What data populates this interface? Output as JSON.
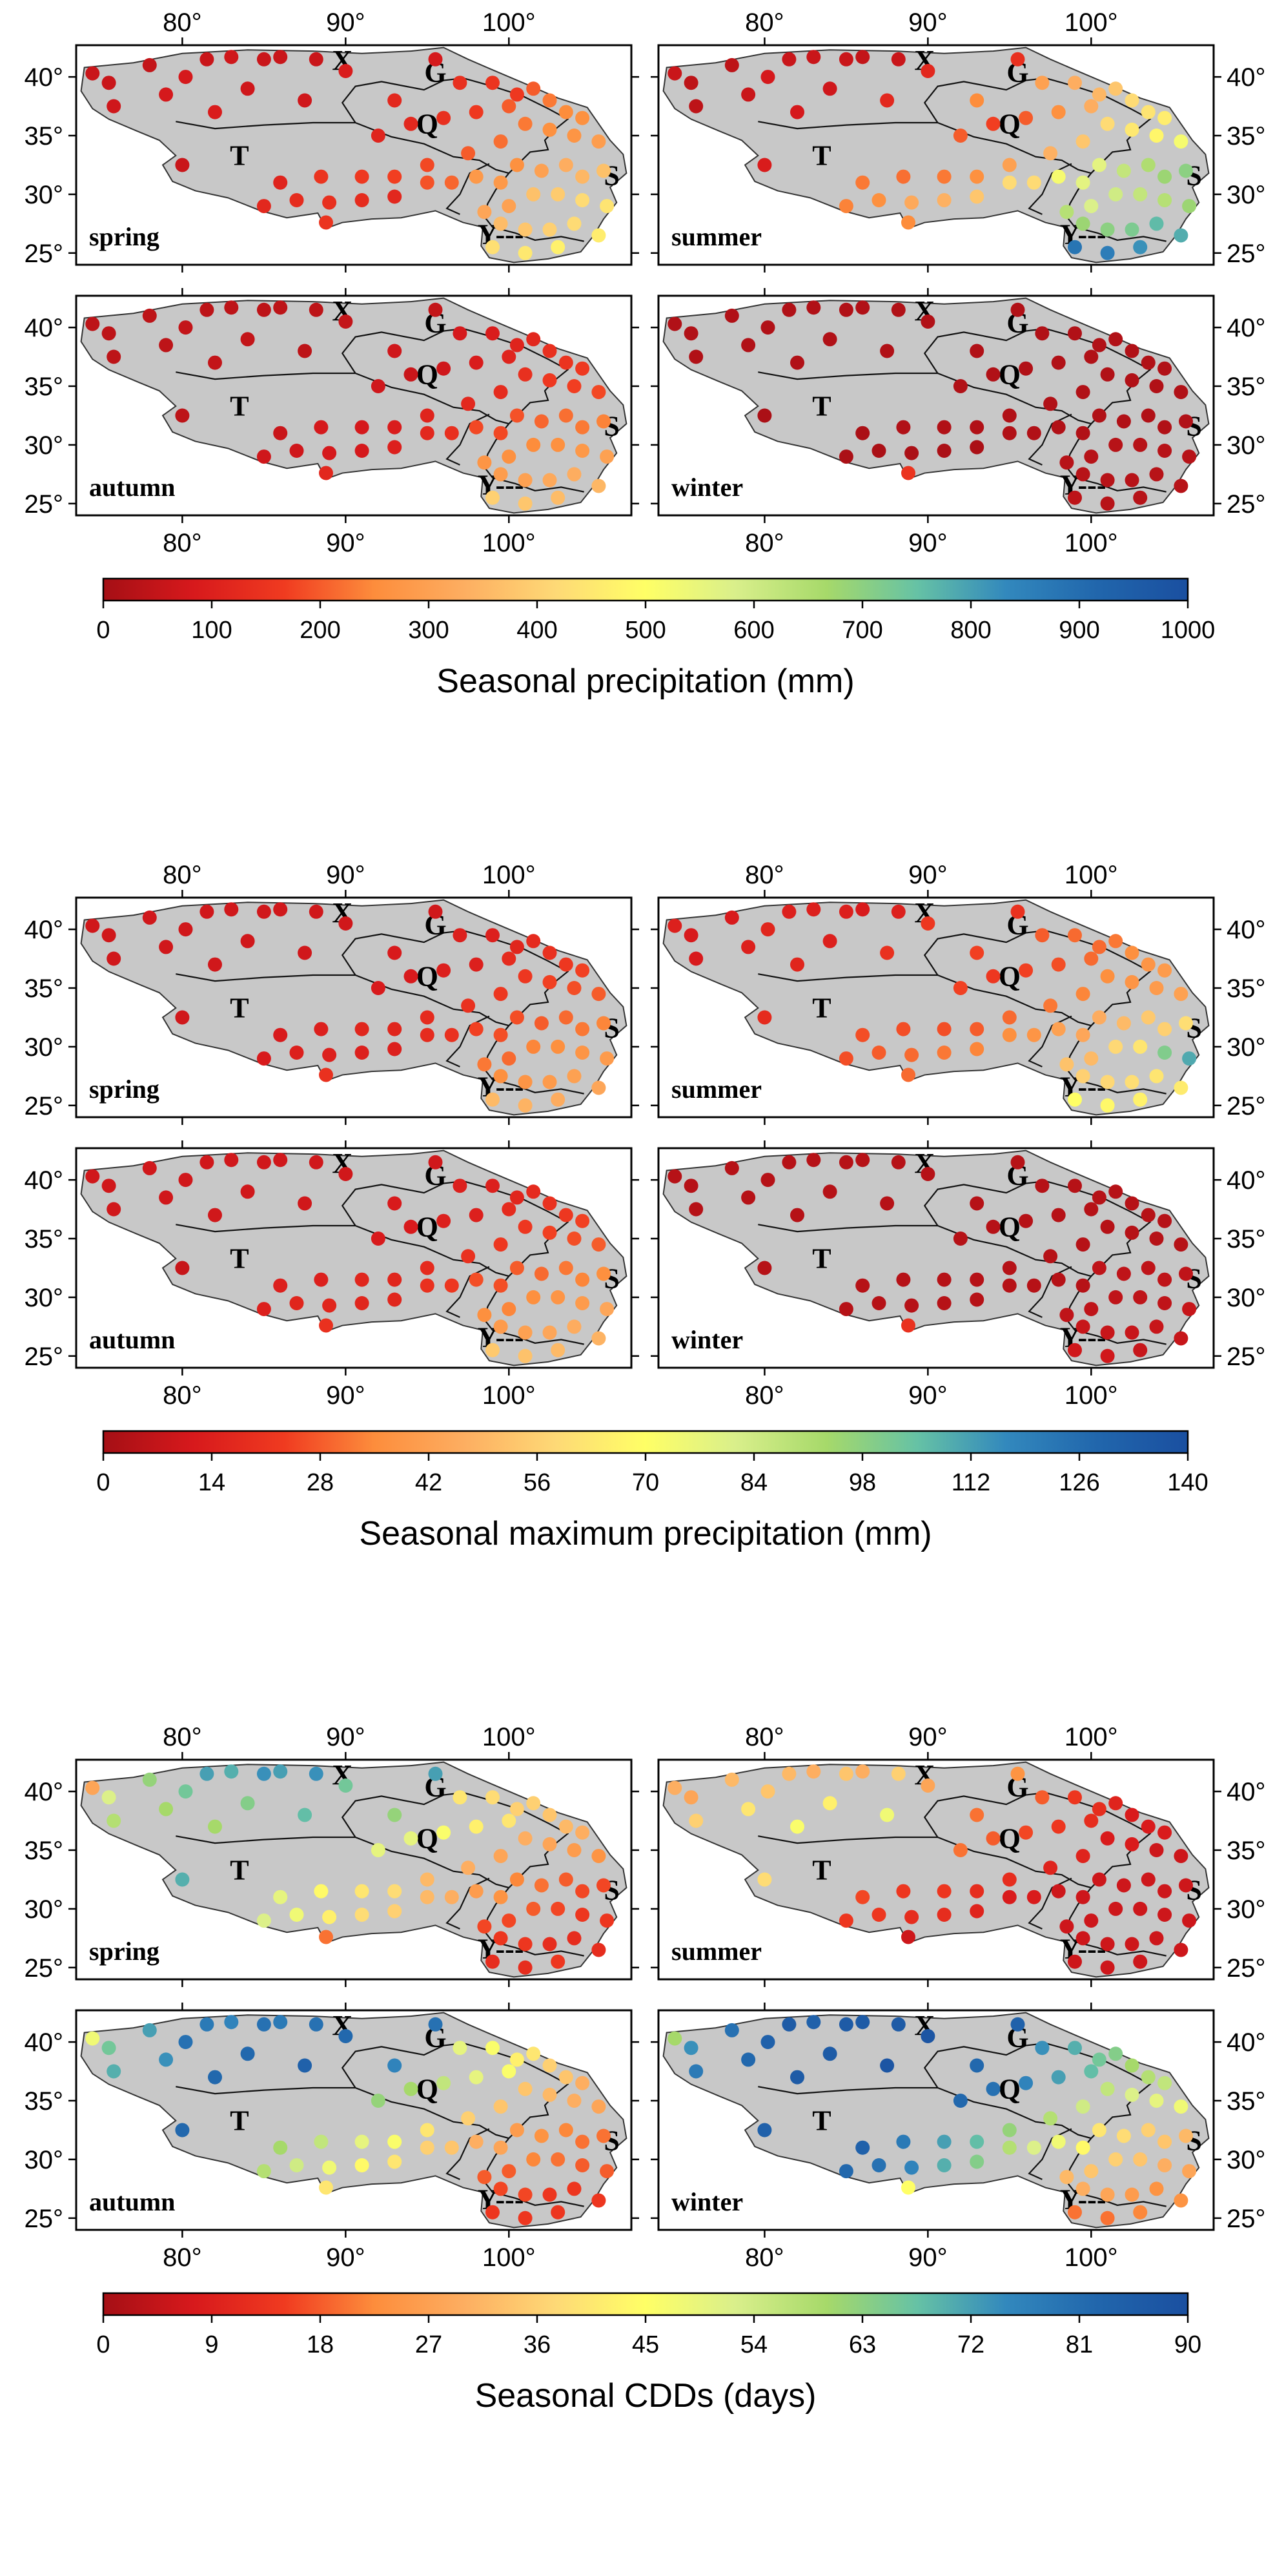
{
  "figure_sections": [
    {
      "id": "precip",
      "title": "Seasonal precipitation (mm)",
      "colorbar": {
        "min": 0,
        "max": 1000,
        "ticks": [
          "0",
          "100",
          "200",
          "300",
          "400",
          "500",
          "600",
          "700",
          "800",
          "900",
          "1000"
        ]
      },
      "panels": [
        {
          "season": "spring",
          "regions": [
            "X",
            "G",
            "Q",
            "T",
            "S",
            "Y---"
          ]
        },
        {
          "season": "summer",
          "regions": [
            "X",
            "G",
            "Q",
            "T",
            "S",
            "Y---"
          ]
        },
        {
          "season": "autumn",
          "regions": [
            "X",
            "G",
            "Q",
            "T",
            "S",
            "Y---"
          ]
        },
        {
          "season": "winter",
          "regions": [
            "X",
            "G",
            "Q",
            "T",
            "S",
            "Y---"
          ]
        }
      ]
    },
    {
      "id": "maxprecip",
      "title": "Seasonal maximum precipitation (mm)",
      "colorbar": {
        "min": 0,
        "max": 140,
        "ticks": [
          "0",
          "14",
          "28",
          "42",
          "56",
          "70",
          "84",
          "98",
          "112",
          "126",
          "140"
        ]
      },
      "panels": [
        {
          "season": "spring",
          "regions": [
            "X",
            "G",
            "Q",
            "T",
            "S",
            "Y---"
          ]
        },
        {
          "season": "summer",
          "regions": [
            "X",
            "G",
            "Q",
            "T",
            "S",
            "Y---"
          ]
        },
        {
          "season": "autumn",
          "regions": [
            "X",
            "G",
            "Q",
            "T",
            "S",
            "Y---"
          ]
        },
        {
          "season": "winter",
          "regions": [
            "X",
            "G",
            "Q",
            "T",
            "S",
            "Y---"
          ]
        }
      ]
    },
    {
      "id": "cdd",
      "title": "Seasonal CDDs (days)",
      "colorbar": {
        "min": 0,
        "max": 90,
        "ticks": [
          "0",
          "9",
          "18",
          "27",
          "36",
          "45",
          "54",
          "63",
          "72",
          "81",
          "90"
        ]
      },
      "panels": [
        {
          "season": "spring",
          "regions": [
            "X",
            "G",
            "Q",
            "T",
            "S",
            "Y---"
          ]
        },
        {
          "season": "summer",
          "regions": [
            "X",
            "G",
            "Q",
            "T",
            "S",
            "Y---"
          ]
        },
        {
          "season": "autumn",
          "regions": [
            "X",
            "G",
            "Q",
            "T",
            "S",
            "Y---"
          ]
        },
        {
          "season": "winter",
          "regions": [
            "X",
            "G",
            "Q",
            "T",
            "S",
            "Y---"
          ]
        }
      ]
    }
  ],
  "axes": {
    "lon_ticks": [
      "80°",
      "90°",
      "100°"
    ],
    "lat_ticks": [
      "40°",
      "35°",
      "30°",
      "25°"
    ]
  },
  "colormap": [
    "#a50f15",
    "#d7191c",
    "#f03b20",
    "#fd8d3c",
    "#fdae61",
    "#fed976",
    "#ffff66",
    "#d9ef8b",
    "#a6d96a",
    "#66c2a5",
    "#3288bd",
    "#2166ac",
    "#1a4fa0"
  ],
  "stations": [
    {
      "lon": 74.5,
      "lat": 40.3
    },
    {
      "lon": 75.5,
      "lat": 39.5
    },
    {
      "lon": 75.8,
      "lat": 37.5
    },
    {
      "lon": 78,
      "lat": 41
    },
    {
      "lon": 79,
      "lat": 38.5
    },
    {
      "lon": 80.2,
      "lat": 40
    },
    {
      "lon": 81.5,
      "lat": 41.5
    },
    {
      "lon": 82,
      "lat": 37
    },
    {
      "lon": 83,
      "lat": 41.7
    },
    {
      "lon": 84,
      "lat": 39
    },
    {
      "lon": 85,
      "lat": 41.5
    },
    {
      "lon": 86,
      "lat": 41.7
    },
    {
      "lon": 87.5,
      "lat": 38
    },
    {
      "lon": 88.2,
      "lat": 41.5
    },
    {
      "lon": 90,
      "lat": 40.5
    },
    {
      "lon": 80,
      "lat": 32.5
    },
    {
      "lon": 93,
      "lat": 38
    },
    {
      "lon": 95.5,
      "lat": 41.5
    },
    {
      "lon": 97,
      "lat": 39.5
    },
    {
      "lon": 99,
      "lat": 39.5
    },
    {
      "lon": 100.5,
      "lat": 38.5
    },
    {
      "lon": 101.5,
      "lat": 39
    },
    {
      "lon": 102.5,
      "lat": 38
    },
    {
      "lon": 103.5,
      "lat": 37
    },
    {
      "lon": 104.5,
      "lat": 36.5
    },
    {
      "lon": 100,
      "lat": 37.5
    },
    {
      "lon": 98,
      "lat": 37
    },
    {
      "lon": 96,
      "lat": 36.5
    },
    {
      "lon": 94,
      "lat": 36
    },
    {
      "lon": 92,
      "lat": 35
    },
    {
      "lon": 101,
      "lat": 36
    },
    {
      "lon": 102.5,
      "lat": 35.5
    },
    {
      "lon": 104,
      "lat": 35
    },
    {
      "lon": 105.5,
      "lat": 34.5
    },
    {
      "lon": 99.5,
      "lat": 34.5
    },
    {
      "lon": 97.5,
      "lat": 33.5
    },
    {
      "lon": 95,
      "lat": 32.5
    },
    {
      "lon": 93,
      "lat": 31.5
    },
    {
      "lon": 91,
      "lat": 31.5
    },
    {
      "lon": 88.5,
      "lat": 31.5
    },
    {
      "lon": 86,
      "lat": 31
    },
    {
      "lon": 85,
      "lat": 29
    },
    {
      "lon": 87,
      "lat": 29.5
    },
    {
      "lon": 89,
      "lat": 29.3
    },
    {
      "lon": 91,
      "lat": 29.5
    },
    {
      "lon": 93,
      "lat": 29.8
    },
    {
      "lon": 95,
      "lat": 31
    },
    {
      "lon": 96.5,
      "lat": 31
    },
    {
      "lon": 98,
      "lat": 31.5
    },
    {
      "lon": 99.5,
      "lat": 31
    },
    {
      "lon": 100.5,
      "lat": 32.5
    },
    {
      "lon": 102,
      "lat": 32
    },
    {
      "lon": 103.5,
      "lat": 32.5
    },
    {
      "lon": 104.5,
      "lat": 31.5
    },
    {
      "lon": 105.8,
      "lat": 32
    },
    {
      "lon": 101.5,
      "lat": 30
    },
    {
      "lon": 103,
      "lat": 30
    },
    {
      "lon": 104.5,
      "lat": 29.5
    },
    {
      "lon": 106,
      "lat": 29
    },
    {
      "lon": 100,
      "lat": 29
    },
    {
      "lon": 98.5,
      "lat": 28.5
    },
    {
      "lon": 99.5,
      "lat": 27.5
    },
    {
      "lon": 101,
      "lat": 27
    },
    {
      "lon": 102.5,
      "lat": 27
    },
    {
      "lon": 104,
      "lat": 27.5
    },
    {
      "lon": 105.5,
      "lat": 26.5
    },
    {
      "lon": 103,
      "lat": 25.5
    },
    {
      "lon": 101,
      "lat": 25
    },
    {
      "lon": 99,
      "lat": 25.5
    },
    {
      "lon": 88.8,
      "lat": 27.6
    }
  ],
  "chart_data": [
    {
      "type": "scatter",
      "section": "Seasonal precipitation (mm)",
      "season": "spring",
      "vmax": 1000,
      "values": [
        60,
        60,
        70,
        50,
        80,
        80,
        60,
        90,
        70,
        70,
        60,
        60,
        70,
        60,
        90,
        60,
        120,
        80,
        140,
        150,
        160,
        200,
        230,
        250,
        260,
        200,
        160,
        140,
        120,
        110,
        230,
        260,
        270,
        290,
        220,
        200,
        180,
        170,
        160,
        150,
        110,
        120,
        130,
        140,
        130,
        120,
        190,
        210,
        280,
        280,
        260,
        300,
        330,
        350,
        370,
        370,
        390,
        420,
        440,
        300,
        310,
        360,
        380,
        400,
        420,
        460,
        470,
        450,
        430,
        150
      ]
    },
    {
      "type": "scatter",
      "section": "Seasonal precipitation (mm)",
      "season": "summer",
      "vmax": 1000,
      "values": [
        60,
        40,
        40,
        40,
        60,
        80,
        60,
        80,
        60,
        70,
        60,
        50,
        120,
        60,
        120,
        90,
        250,
        140,
        300,
        330,
        350,
        380,
        420,
        440,
        460,
        330,
        260,
        200,
        170,
        200,
        420,
        450,
        480,
        520,
        380,
        340,
        300,
        260,
        230,
        220,
        230,
        240,
        260,
        320,
        340,
        380,
        420,
        420,
        520,
        560,
        560,
        620,
        650,
        680,
        700,
        600,
        620,
        640,
        680,
        580,
        640,
        680,
        700,
        720,
        760,
        780,
        820,
        860,
        880,
        250
      ]
    },
    {
      "type": "scatter",
      "section": "Seasonal precipitation (mm)",
      "season": "autumn",
      "vmax": 1000,
      "values": [
        40,
        40,
        40,
        40,
        40,
        50,
        40,
        50,
        40,
        50,
        40,
        40,
        40,
        40,
        50,
        40,
        70,
        50,
        80,
        90,
        110,
        120,
        140,
        150,
        160,
        110,
        90,
        70,
        60,
        70,
        140,
        160,
        170,
        180,
        130,
        120,
        110,
        90,
        80,
        80,
        60,
        70,
        70,
        80,
        80,
        100,
        120,
        140,
        180,
        180,
        190,
        210,
        220,
        230,
        240,
        250,
        260,
        280,
        300,
        260,
        270,
        290,
        300,
        320,
        330,
        350,
        360,
        380,
        400,
        120
      ]
    },
    {
      "type": "scatter",
      "section": "Seasonal precipitation (mm)",
      "season": "winter",
      "vmax": 1000,
      "values": [
        20,
        20,
        20,
        20,
        20,
        20,
        20,
        20,
        20,
        20,
        20,
        20,
        20,
        20,
        20,
        10,
        20,
        20,
        20,
        20,
        20,
        20,
        20,
        20,
        20,
        20,
        20,
        20,
        20,
        20,
        20,
        20,
        20,
        20,
        20,
        20,
        20,
        20,
        20,
        20,
        10,
        10,
        10,
        10,
        10,
        10,
        20,
        20,
        20,
        20,
        20,
        20,
        20,
        20,
        20,
        30,
        30,
        30,
        30,
        30,
        30,
        30,
        30,
        30,
        30,
        30,
        30,
        30,
        40,
        150
      ]
    },
    {
      "type": "scatter",
      "section": "Seasonal maximum precipitation (mm)",
      "season": "spring",
      "vmax": 140,
      "values": [
        10,
        10,
        10,
        10,
        10,
        10,
        10,
        10,
        10,
        10,
        10,
        10,
        10,
        10,
        10,
        10,
        12,
        10,
        14,
        14,
        16,
        18,
        20,
        22,
        24,
        18,
        14,
        14,
        12,
        12,
        22,
        24,
        26,
        28,
        22,
        20,
        18,
        16,
        16,
        14,
        12,
        12,
        14,
        14,
        14,
        14,
        18,
        20,
        24,
        26,
        26,
        28,
        30,
        32,
        34,
        34,
        36,
        38,
        40,
        30,
        32,
        36,
        38,
        40,
        42,
        44,
        46,
        48,
        50,
        20
      ]
    },
    {
      "type": "scatter",
      "section": "Seasonal maximum precipitation (mm)",
      "season": "summer",
      "vmax": 140,
      "values": [
        14,
        12,
        12,
        12,
        14,
        16,
        14,
        16,
        14,
        14,
        14,
        12,
        20,
        14,
        22,
        18,
        24,
        20,
        28,
        30,
        30,
        32,
        36,
        38,
        40,
        30,
        26,
        24,
        22,
        24,
        36,
        38,
        40,
        42,
        34,
        32,
        30,
        28,
        26,
        26,
        26,
        26,
        28,
        30,
        32,
        34,
        36,
        38,
        42,
        44,
        46,
        50,
        54,
        56,
        60,
        58,
        62,
        100,
        110,
        50,
        52,
        56,
        58,
        60,
        62,
        64,
        66,
        68,
        70,
        30
      ]
    },
    {
      "type": "scatter",
      "section": "Seasonal maximum precipitation (mm)",
      "season": "autumn",
      "vmax": 140,
      "values": [
        10,
        10,
        10,
        10,
        10,
        10,
        10,
        10,
        10,
        10,
        10,
        10,
        10,
        10,
        10,
        8,
        12,
        10,
        14,
        14,
        16,
        18,
        20,
        22,
        24,
        18,
        14,
        14,
        12,
        12,
        22,
        24,
        26,
        28,
        22,
        20,
        18,
        16,
        16,
        14,
        14,
        14,
        16,
        16,
        16,
        16,
        20,
        22,
        26,
        26,
        28,
        30,
        32,
        34,
        36,
        36,
        38,
        40,
        44,
        34,
        36,
        40,
        42,
        44,
        46,
        48,
        50,
        52,
        54,
        20
      ]
    },
    {
      "type": "scatter",
      "section": "Seasonal maximum precipitation (mm)",
      "season": "winter",
      "vmax": 140,
      "values": [
        4,
        4,
        4,
        4,
        4,
        4,
        4,
        4,
        4,
        4,
        4,
        4,
        4,
        4,
        4,
        4,
        4,
        4,
        4,
        4,
        4,
        4,
        4,
        4,
        4,
        4,
        4,
        4,
        4,
        4,
        4,
        4,
        4,
        4,
        4,
        4,
        4,
        4,
        4,
        4,
        4,
        4,
        4,
        4,
        4,
        4,
        4,
        4,
        4,
        4,
        6,
        6,
        6,
        6,
        6,
        6,
        6,
        6,
        8,
        6,
        6,
        8,
        8,
        8,
        8,
        8,
        8,
        10,
        10,
        20
      ]
    },
    {
      "type": "scatter",
      "section": "Seasonal CDDs (days)",
      "season": "spring",
      "vmax": 90,
      "values": [
        28,
        52,
        58,
        62,
        60,
        66,
        72,
        60,
        70,
        64,
        74,
        72,
        68,
        74,
        66,
        70,
        62,
        72,
        40,
        38,
        36,
        36,
        34,
        32,
        30,
        40,
        42,
        46,
        50,
        50,
        30,
        28,
        26,
        24,
        28,
        30,
        32,
        38,
        40,
        44,
        50,
        52,
        48,
        42,
        38,
        36,
        32,
        30,
        26,
        24,
        22,
        20,
        18,
        16,
        16,
        18,
        16,
        14,
        14,
        16,
        16,
        14,
        14,
        12,
        12,
        12,
        14,
        12,
        12,
        20
      ]
    },
    {
      "type": "scatter",
      "section": "Seasonal CDDs (days)",
      "season": "summer",
      "vmax": 90,
      "values": [
        30,
        28,
        36,
        32,
        40,
        34,
        32,
        46,
        30,
        42,
        34,
        30,
        48,
        36,
        28,
        38,
        20,
        24,
        18,
        14,
        12,
        10,
        8,
        8,
        8,
        12,
        14,
        16,
        18,
        20,
        8,
        8,
        6,
        6,
        10,
        10,
        12,
        12,
        14,
        14,
        16,
        14,
        14,
        12,
        12,
        10,
        8,
        8,
        6,
        6,
        6,
        6,
        6,
        6,
        6,
        6,
        6,
        6,
        6,
        6,
        6,
        6,
        6,
        6,
        6,
        6,
        6,
        6,
        6,
        6
      ]
    },
    {
      "type": "scatter",
      "section": "Seasonal CDDs (days)",
      "season": "autumn",
      "vmax": 90,
      "values": [
        48,
        66,
        70,
        72,
        74,
        80,
        78,
        82,
        76,
        82,
        80,
        78,
        84,
        80,
        82,
        82,
        76,
        80,
        50,
        46,
        42,
        40,
        36,
        34,
        30,
        46,
        50,
        56,
        60,
        62,
        34,
        32,
        30,
        28,
        34,
        36,
        40,
        46,
        50,
        56,
        60,
        58,
        54,
        48,
        44,
        40,
        36,
        34,
        30,
        28,
        26,
        24,
        22,
        20,
        20,
        22,
        20,
        18,
        18,
        18,
        18,
        16,
        16,
        14,
        14,
        14,
        14,
        14,
        14,
        40
      ]
    },
    {
      "type": "scatter",
      "section": "Seasonal CDDs (days)",
      "season": "winter",
      "vmax": 90,
      "values": [
        60,
        74,
        78,
        80,
        82,
        84,
        86,
        86,
        84,
        86,
        86,
        86,
        88,
        86,
        88,
        84,
        82,
        84,
        74,
        70,
        66,
        64,
        60,
        58,
        56,
        68,
        72,
        76,
        80,
        82,
        56,
        52,
        50,
        48,
        54,
        58,
        62,
        68,
        72,
        78,
        84,
        82,
        80,
        76,
        70,
        64,
        58,
        52,
        48,
        44,
        40,
        38,
        36,
        34,
        32,
        36,
        34,
        30,
        28,
        34,
        32,
        30,
        28,
        26,
        24,
        24,
        22,
        20,
        20,
        45
      ]
    }
  ]
}
